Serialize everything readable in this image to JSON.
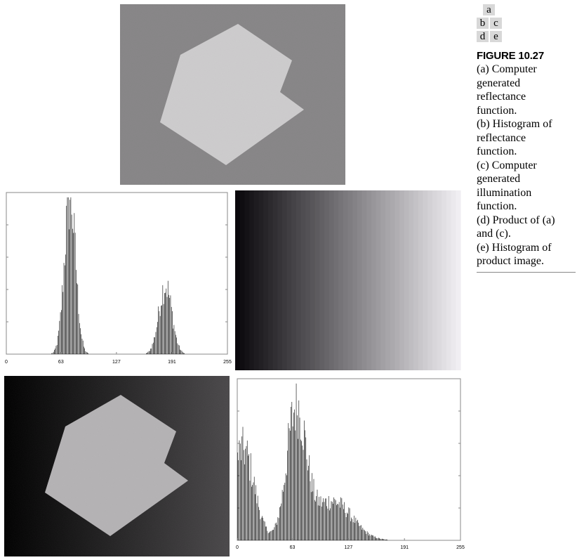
{
  "layout_letters": [
    "a",
    "b",
    "c",
    "d",
    "e"
  ],
  "caption": {
    "title": "FIGURE 10.27",
    "lines": [
      "(a) Computer",
      "generated",
      "reflectance",
      "function.",
      "(b) Histogram of",
      "reflectance",
      "function.",
      "(c) Computer",
      "generated",
      "illumination",
      "function.",
      "(d) Product of (a)",
      "and (c).",
      "(e) Histogram of",
      "product image."
    ]
  },
  "colors": {
    "background_dark": "#4a484a",
    "object_light": "#b4b2b4",
    "histogram_bar": "#000000",
    "axis": "#888888"
  },
  "chart_data": [
    {
      "type": "bar",
      "panel": "b",
      "x_ticks": [
        "0",
        "63",
        "127",
        "191",
        "255"
      ],
      "xlim": [
        0,
        255
      ],
      "peaks": [
        {
          "center": 73,
          "width": 6.5,
          "height": 1.0
        },
        {
          "center": 183,
          "width": 7.5,
          "height": 0.44
        }
      ]
    },
    {
      "type": "bar",
      "panel": "e",
      "x_ticks": [
        "0",
        "63",
        "127",
        "191",
        "255"
      ],
      "xlim": [
        0,
        255
      ],
      "components": [
        {
          "center": 6,
          "width": 13,
          "height": 0.58
        },
        {
          "center": 67,
          "width": 11,
          "height": 0.82
        },
        {
          "center": 108,
          "width": 22,
          "height": 0.25
        }
      ]
    }
  ]
}
